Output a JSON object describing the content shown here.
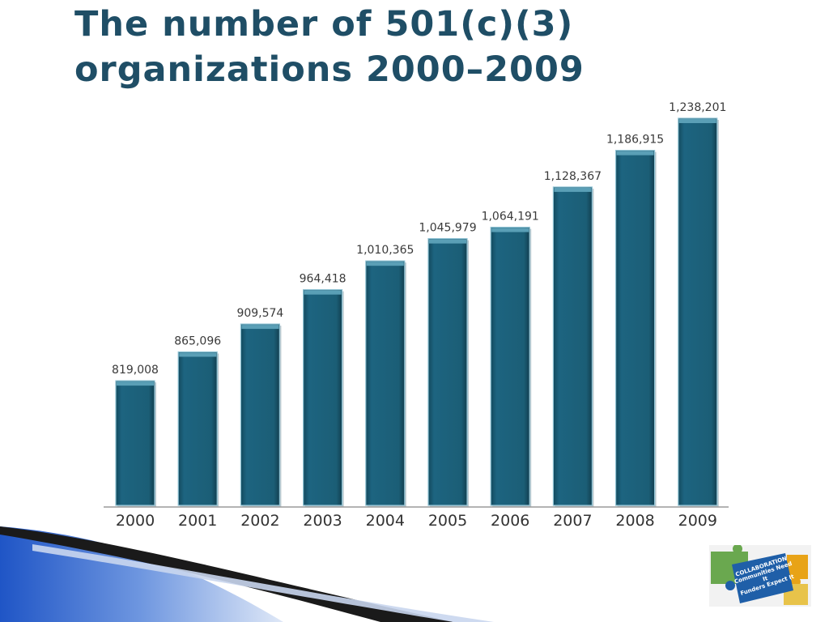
{
  "slide": {
    "title_line1": "The number of 501(c)(3)",
    "title_line2": "organizations 2000–2009"
  },
  "logo": {
    "line1": "COLLABORATION",
    "line2": "Communities Need It",
    "line3": "Funders Expect It"
  },
  "colors": {
    "bar_fill": "#1b5e76",
    "bar_edge": "#8fc3d4",
    "title": "#1f4e66"
  },
  "chart_data": {
    "type": "bar",
    "title": "",
    "xlabel": "",
    "ylabel": "",
    "categories": [
      "2000",
      "2001",
      "2002",
      "2003",
      "2004",
      "2005",
      "2006",
      "2007",
      "2008",
      "2009"
    ],
    "values": [
      819008,
      865096,
      909574,
      964418,
      1010365,
      1045979,
      1064191,
      1128367,
      1186915,
      1238201
    ],
    "value_labels": [
      "819,008",
      "865,096",
      "909,574",
      "964,418",
      "1,010,365",
      "1,045,979",
      "1,064,191",
      "1,128,367",
      "1,186,915",
      "1,238,201"
    ],
    "ylim": [
      0,
      1238201
    ],
    "grid": false,
    "legend": "none"
  }
}
